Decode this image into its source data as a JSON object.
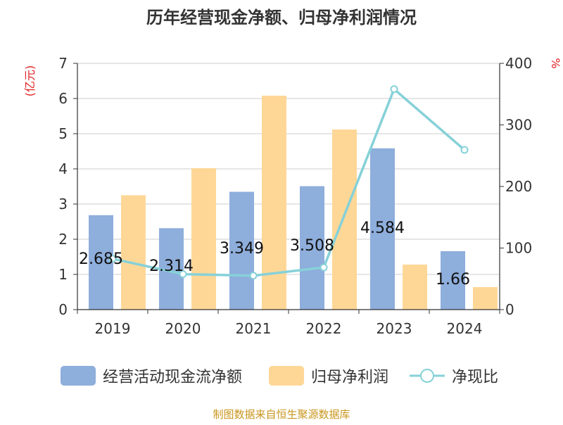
{
  "chart_data": {
    "type": "bar",
    "title": "历年经营现金净额、归母净利润情况",
    "categories": [
      "2019",
      "2020",
      "2021",
      "2022",
      "2023",
      "2024"
    ],
    "left_axis": {
      "unit_label": "(亿元)",
      "ylim": [
        0,
        7
      ],
      "ticks": [
        "0",
        "1",
        "2",
        "3",
        "4",
        "5",
        "6",
        "7"
      ]
    },
    "right_axis": {
      "unit_label": "%",
      "ylim": [
        0,
        400
      ],
      "ticks": [
        "0",
        "100",
        "200",
        "300",
        "400"
      ]
    },
    "series": [
      {
        "name": "经营活动现金流净额",
        "type": "bar",
        "axis": "left",
        "color": "#8eaedc",
        "values": [
          2.685,
          2.314,
          3.349,
          3.508,
          4.584,
          1.66
        ],
        "data_labels": [
          "2.685",
          "2.314",
          "3.349",
          "3.508",
          "4.584",
          "1.66"
        ]
      },
      {
        "name": "归母净利润",
        "type": "bar",
        "axis": "left",
        "color": "#fed797",
        "values": [
          3.25,
          4.02,
          6.08,
          5.12,
          1.28,
          0.64
        ]
      },
      {
        "name": "净现比",
        "type": "line",
        "axis": "right",
        "color": "#86d1d8",
        "values": [
          82.6,
          57.6,
          55.1,
          68.5,
          358.1,
          259.4
        ]
      }
    ],
    "grid": true,
    "legend_position": "bottom"
  },
  "source_note": "制图数据来自恒生聚源数据库"
}
